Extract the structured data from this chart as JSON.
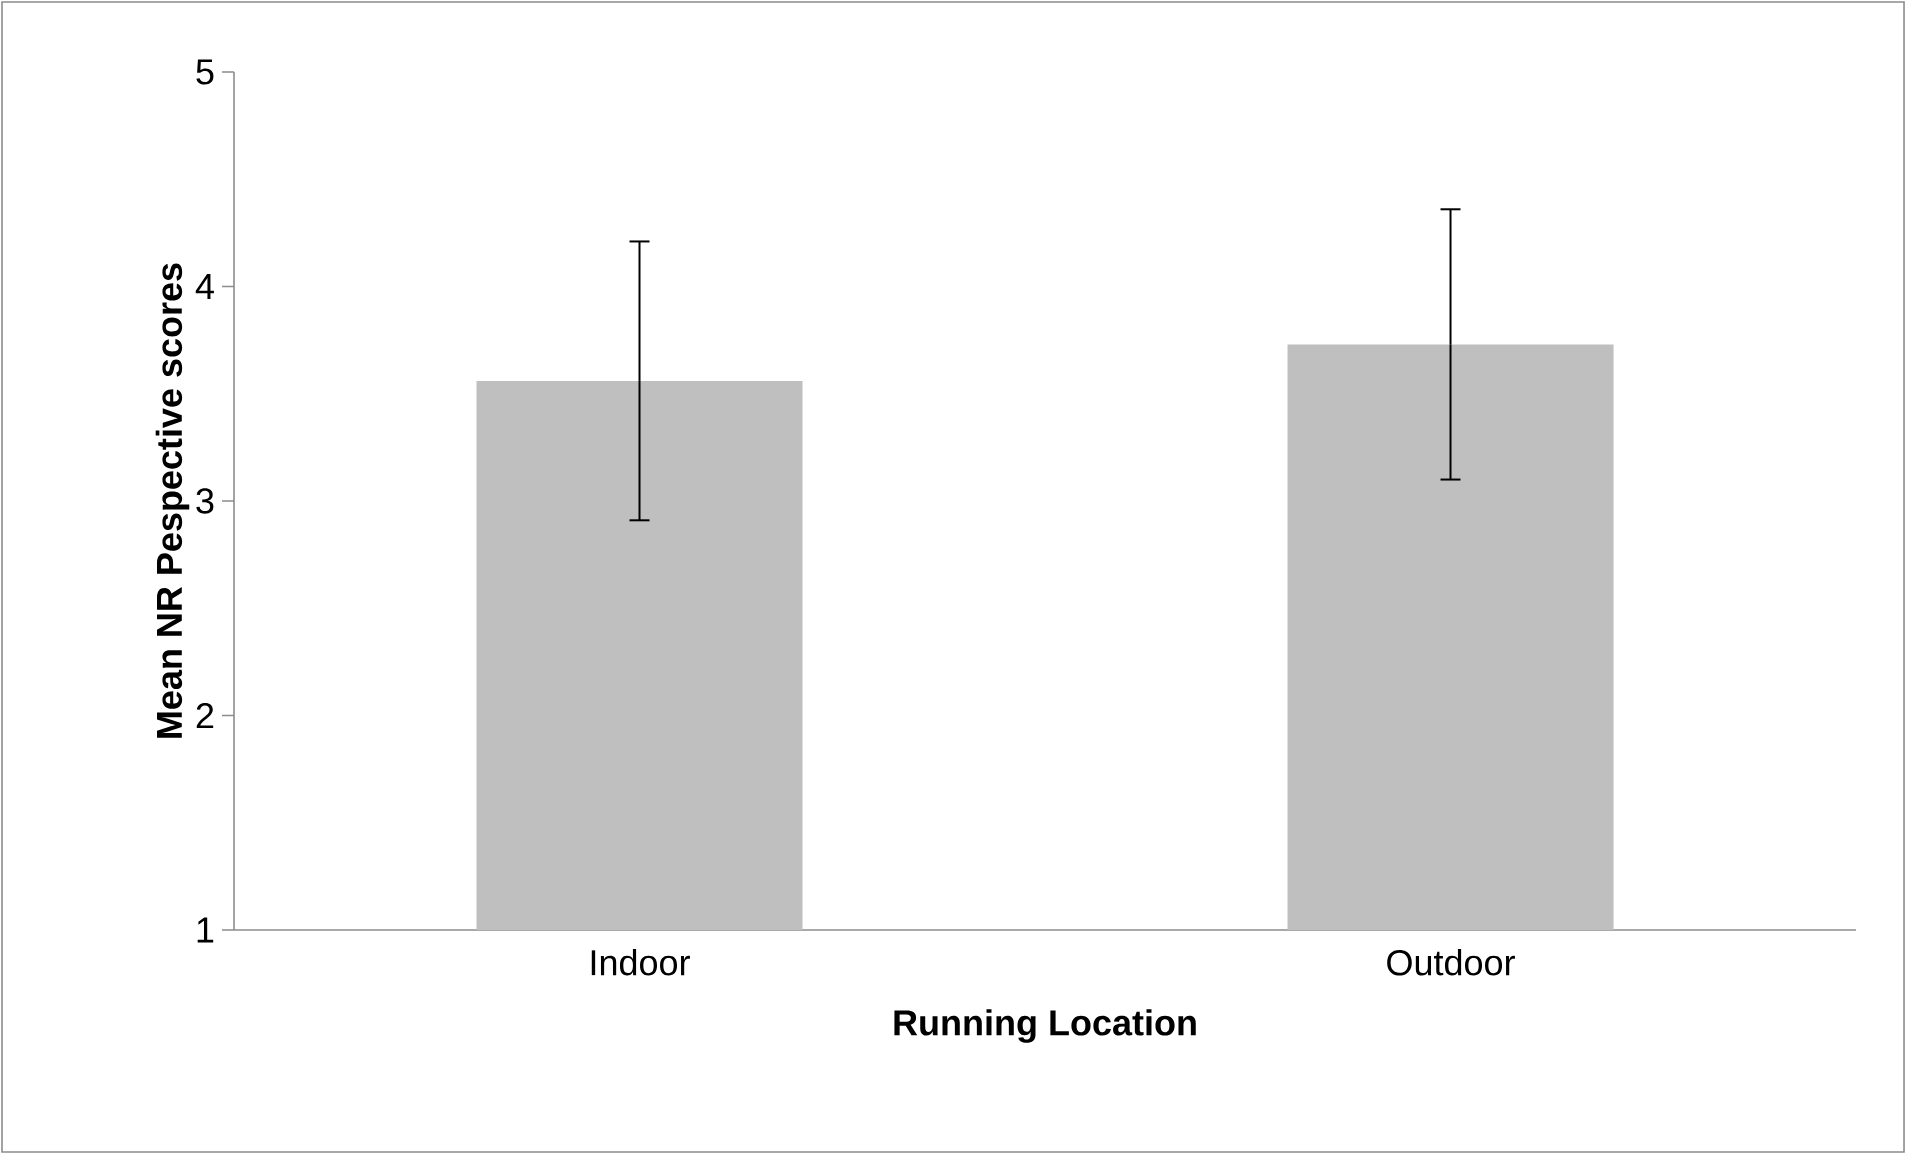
{
  "chart_data": {
    "type": "bar",
    "xlabel": "Running Location",
    "ylabel": "Mean NR Pespective scores",
    "categories": [
      "Indoor",
      "Outdoor"
    ],
    "values": [
      3.56,
      3.73
    ],
    "errors": [
      0.65,
      0.63
    ],
    "color": "#bfbfbf",
    "ylim": [
      1,
      5
    ],
    "yticks": [
      1,
      2,
      3,
      4,
      5
    ]
  }
}
